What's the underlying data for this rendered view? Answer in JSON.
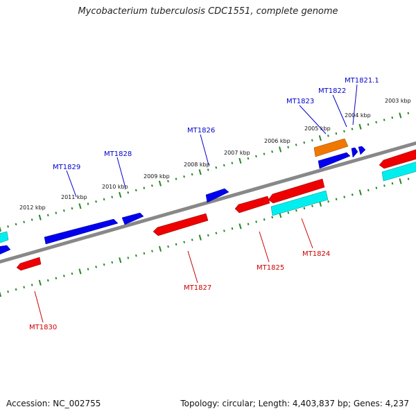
{
  "title": "Mycobacterium tuberculosis CDC1551, complete genome",
  "footer": {
    "accession": "Accession: NC_002755",
    "topology": "Topology: circular; Length: 4,403,837 bp; Genes: 4,237"
  },
  "colors": {
    "forward_gene": "#0000ee",
    "reverse_gene": "#ee0000",
    "feature_orange": "#f07800",
    "feature_cyan": "#00eeee",
    "backbone": "#888888",
    "ticks": "#228822",
    "label_forward": "#0000cc",
    "label_reverse": "#cc0000"
  },
  "kbp_labels": [
    "2003 kbp",
    "2004 kbp",
    "2005 kbp",
    "2006 kbp",
    "2007 kbp",
    "2008 kbp",
    "2009 kbp",
    "2010 kbp",
    "2011 kbp",
    "2012 kbp"
  ],
  "gene_labels_forward": [
    "MT1821.1",
    "MT1822",
    "MT1823",
    "MT1826",
    "MT1828",
    "MT1829"
  ],
  "gene_labels_reverse": [
    "MT1824",
    "MT1825",
    "MT1827",
    "MT1830"
  ]
}
